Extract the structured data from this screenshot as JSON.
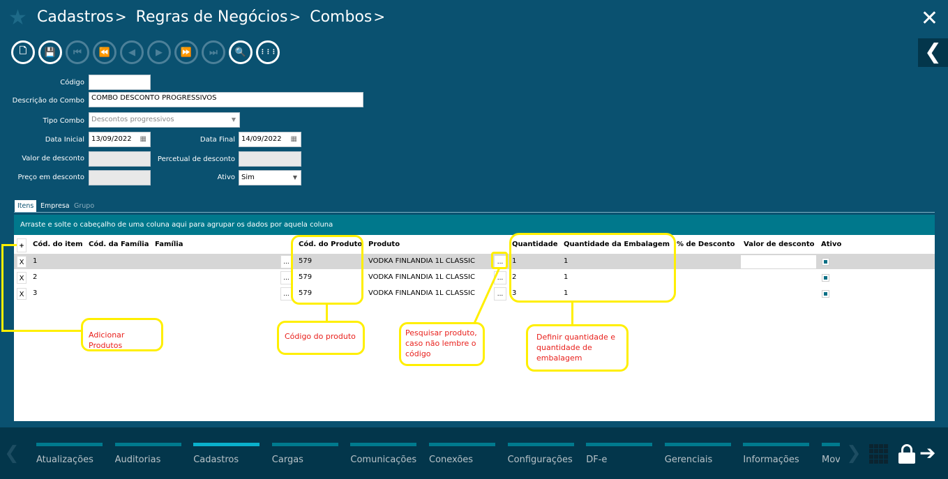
{
  "breadcrumb": [
    "Cadastros",
    "Regras de Negócios",
    "Combos"
  ],
  "breadcrumb_sep": ">",
  "icons": {
    "favorite": "star-icon",
    "close": "close-icon",
    "collapse": "chevron-left-icon"
  },
  "toolbar": [
    {
      "name": "new-document",
      "glyph": "🗋",
      "enabled": true
    },
    {
      "name": "save",
      "glyph": "💾",
      "enabled": true
    },
    {
      "name": "first",
      "glyph": "⏮",
      "enabled": false
    },
    {
      "name": "rewind",
      "glyph": "⏪",
      "enabled": false
    },
    {
      "name": "previous",
      "glyph": "◀",
      "enabled": false
    },
    {
      "name": "next",
      "glyph": "▶",
      "enabled": false
    },
    {
      "name": "fast-forward",
      "glyph": "⏩",
      "enabled": false
    },
    {
      "name": "last",
      "glyph": "⏭",
      "enabled": false
    },
    {
      "name": "search",
      "glyph": "🔍",
      "enabled": true
    },
    {
      "name": "grid",
      "glyph": "⋮⋮⋮",
      "enabled": true
    }
  ],
  "form": {
    "codigo_label": "Código",
    "codigo_value": "",
    "descricao_label": "Descrição do Combo",
    "descricao_value": "COMBO DESCONTO PROGRESSIVOS",
    "tipo_label": "Tipo Combo",
    "tipo_value": "Descontos progressivos",
    "data_inicial_label": "Data Inicial",
    "data_inicial_value": "13/09/2022",
    "data_final_label": "Data Final",
    "data_final_value": "14/09/2022",
    "valor_desconto_label": "Valor de desconto",
    "percentual_label": "Percetual de desconto",
    "preco_label": "Preço em desconto",
    "ativo_label": "Ativo",
    "ativo_value": "Sim"
  },
  "tabs": [
    {
      "label": "Itens",
      "active": true
    },
    {
      "label": "Empresa",
      "active": false
    },
    {
      "label": "Grupo",
      "active": false,
      "disabled": true
    }
  ],
  "grid": {
    "group_hint": "Arraste e solte o cabeçalho de uma coluna aqui para agrupar os dados por aquela coluna",
    "add_label": "+",
    "columns": [
      "Cód. do item",
      "Cód. da Família",
      "Família",
      "Cód. do Produto",
      "Produto",
      "Quantidade",
      "Quantidade da Embalagem",
      "% de Desconto",
      "Valor de desconto",
      "Ativo"
    ],
    "rows": [
      {
        "delete": "X",
        "item": "1",
        "familia_btn": "...",
        "cod_produto": "579",
        "produto": "VODKA FINLANDIA 1L CLASSIC",
        "produto_btn": "...",
        "quantidade": "1",
        "qtd_embalagem": "1",
        "ativo": true,
        "selected": true
      },
      {
        "delete": "X",
        "item": "2",
        "familia_btn": "...",
        "cod_produto": "579",
        "produto": "VODKA FINLANDIA 1L CLASSIC",
        "produto_btn": "...",
        "quantidade": "2",
        "qtd_embalagem": "1",
        "ativo": true,
        "selected": false
      },
      {
        "delete": "X",
        "item": "3",
        "familia_btn": "...",
        "cod_produto": "579",
        "produto": "VODKA FINLANDIA 1L CLASSIC",
        "produto_btn": "...",
        "quantidade": "3",
        "qtd_embalagem": "1",
        "ativo": true,
        "selected": false
      }
    ]
  },
  "annotations": {
    "adicionar": "Adicionar Produtos",
    "codigo": "Código do produto",
    "pesquisar": "Pesquisar produto, caso não lembre o código",
    "definir": "Definir quantidade e quantidade de embalagem"
  },
  "footer": {
    "nav": [
      "Atualizações",
      "Auditorias",
      "Cadastros",
      "Cargas",
      "Comunicações",
      "Conexões",
      "Configurações",
      "DF-e",
      "Gerenciais",
      "Informações",
      "Mov"
    ],
    "active": "Cadastros",
    "icons": [
      "chevron-left-icon",
      "chevron-right-icon",
      "apps-grid-icon",
      "lock-icon",
      "logout-arrow-icon"
    ]
  },
  "colors": {
    "background": "#0a5170",
    "header_band": "#00788c",
    "footer": "#03364b",
    "annotation": "#ffef00",
    "annotation_text": "#e8201c"
  }
}
